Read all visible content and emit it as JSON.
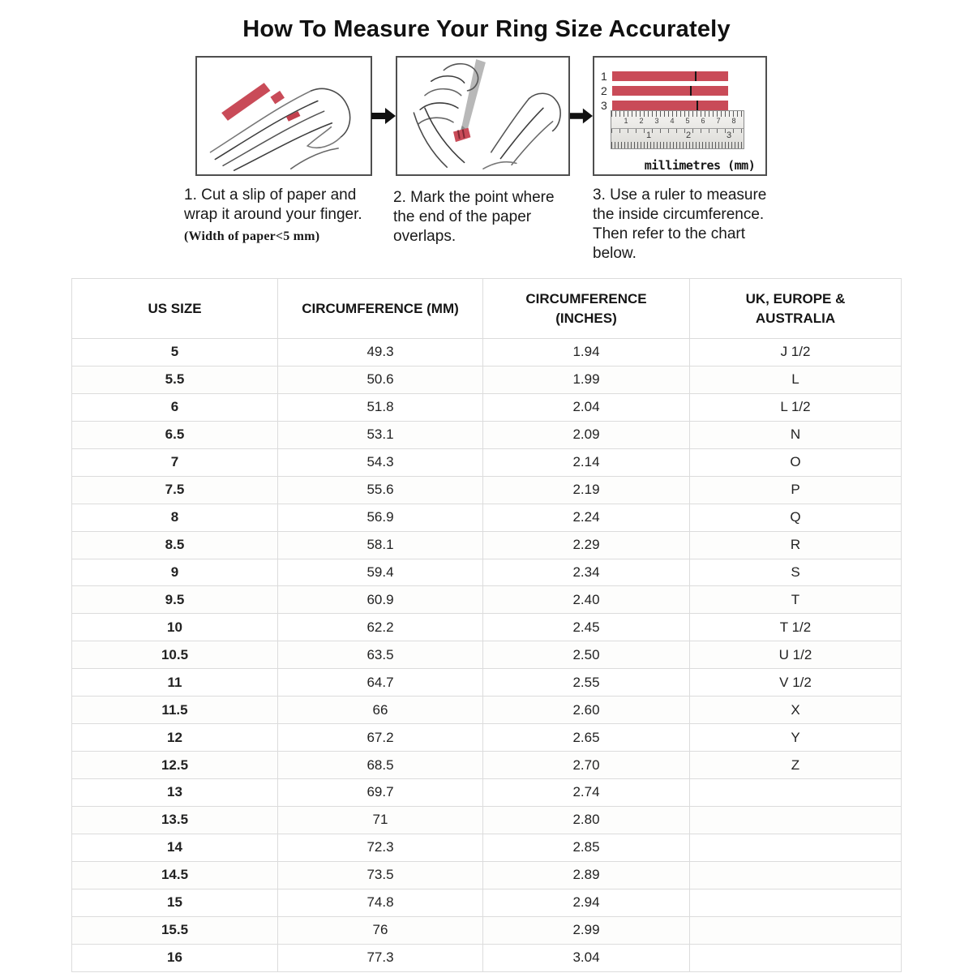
{
  "title": "How To Measure Your Ring Size Accurately",
  "colors": {
    "strip_red": "#c94b58",
    "box_border_gray": "#4f4f4f",
    "table_border_gray": "#dcdcdc",
    "arrow_black": "#111111"
  },
  "steps": [
    {
      "caption_lines": [
        "1. Cut a slip of paper and",
        "wrap it around your finger."
      ],
      "note": "(Width of paper<5 mm)"
    },
    {
      "caption_lines": [
        "2. Mark the point where",
        "the end of the paper",
        "overlaps."
      ]
    },
    {
      "caption_lines": [
        "3. Use a ruler to measure",
        "the inside circumference.",
        "Then refer to the chart",
        "below."
      ]
    }
  ],
  "illustration3": {
    "strips": [
      {
        "label": "1",
        "tick_pct": 71
      },
      {
        "label": "2",
        "tick_pct": 67
      },
      {
        "label": "3",
        "tick_pct": 73
      }
    ],
    "ruler_cm_numbers": [
      "1",
      "2",
      "3",
      "4",
      "5",
      "6",
      "7",
      "8"
    ],
    "ruler_inch_numbers": [
      "1",
      "2",
      "3"
    ],
    "ruler_caption": "millimetres (mm)"
  },
  "table": {
    "headers": [
      {
        "lines": [
          "US SIZE"
        ]
      },
      {
        "lines": [
          "CIRCUMFERENCE (MM)"
        ]
      },
      {
        "lines": [
          "CIRCUMFERENCE",
          "(INCHES)"
        ]
      },
      {
        "lines": [
          "UK, EUROPE &",
          "AUSTRALIA"
        ]
      }
    ],
    "rows": [
      [
        "5",
        "49.3",
        "1.94",
        "J 1/2"
      ],
      [
        "5.5",
        "50.6",
        "1.99",
        "L"
      ],
      [
        "6",
        "51.8",
        "2.04",
        "L 1/2"
      ],
      [
        "6.5",
        "53.1",
        "2.09",
        "N"
      ],
      [
        "7",
        "54.3",
        "2.14",
        "O"
      ],
      [
        "7.5",
        "55.6",
        "2.19",
        "P"
      ],
      [
        "8",
        "56.9",
        "2.24",
        "Q"
      ],
      [
        "8.5",
        "58.1",
        "2.29",
        "R"
      ],
      [
        "9",
        "59.4",
        "2.34",
        "S"
      ],
      [
        "9.5",
        "60.9",
        "2.40",
        "T"
      ],
      [
        "10",
        "62.2",
        "2.45",
        "T 1/2"
      ],
      [
        "10.5",
        "63.5",
        "2.50",
        "U 1/2"
      ],
      [
        "11",
        "64.7",
        "2.55",
        "V 1/2"
      ],
      [
        "11.5",
        "66",
        "2.60",
        "X"
      ],
      [
        "12",
        "67.2",
        "2.65",
        "Y"
      ],
      [
        "12.5",
        "68.5",
        "2.70",
        "Z"
      ],
      [
        "13",
        "69.7",
        "2.74",
        ""
      ],
      [
        "13.5",
        "71",
        "2.80",
        ""
      ],
      [
        "14",
        "72.3",
        "2.85",
        ""
      ],
      [
        "14.5",
        "73.5",
        "2.89",
        ""
      ],
      [
        "15",
        "74.8",
        "2.94",
        ""
      ],
      [
        "15.5",
        "76",
        "2.99",
        ""
      ],
      [
        "16",
        "77.3",
        "3.04",
        ""
      ]
    ]
  }
}
